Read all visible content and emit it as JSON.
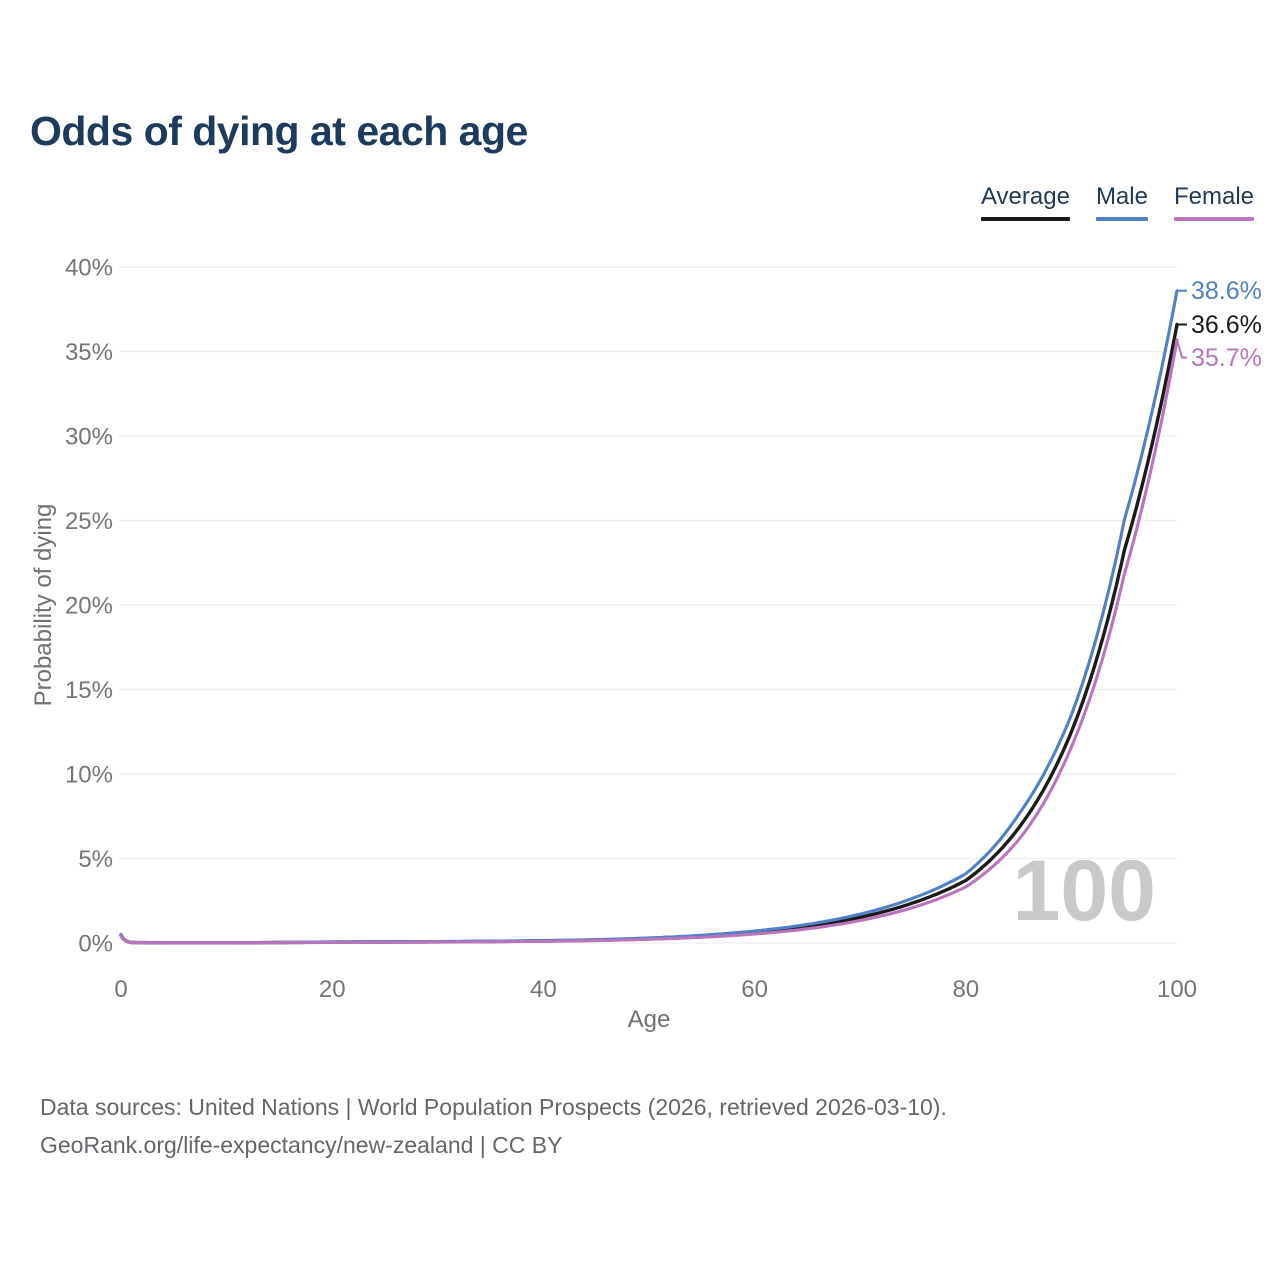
{
  "title": "Odds of dying at each age",
  "legend": [
    {
      "label": "Average",
      "color": "#1b1b1b"
    },
    {
      "label": "Male",
      "color": "#5181c4"
    },
    {
      "label": "Female",
      "color": "#b975bb"
    }
  ],
  "chart_data": {
    "type": "line",
    "title": "Odds of dying at each age",
    "xlabel": "Age",
    "ylabel": "Probability of dying",
    "xlim": [
      0,
      100
    ],
    "ylim": [
      0,
      40
    ],
    "xticks": [
      0,
      20,
      40,
      60,
      80,
      100
    ],
    "yticks": [
      0,
      5,
      10,
      15,
      20,
      25,
      30,
      35,
      40
    ],
    "ytick_suffix": "%",
    "grid": "horizontal",
    "legend_position": "top-right",
    "watermark": "100",
    "ages": [
      0,
      1,
      5,
      10,
      15,
      20,
      25,
      30,
      35,
      40,
      45,
      50,
      55,
      60,
      65,
      70,
      75,
      80,
      85,
      90,
      95,
      100
    ],
    "series": [
      {
        "name": "Average",
        "color": "#1b1b1b",
        "end_label": "36.6%",
        "end_value": 36.6,
        "values": [
          0.45,
          0.03,
          0.01,
          0.01,
          0.03,
          0.05,
          0.06,
          0.07,
          0.09,
          0.12,
          0.17,
          0.26,
          0.4,
          0.62,
          0.97,
          1.52,
          2.37,
          3.7,
          6.8,
          12.5,
          23.2,
          36.6
        ]
      },
      {
        "name": "Male",
        "color": "#5181c4",
        "end_label": "38.6%",
        "end_value": 38.6,
        "values": [
          0.5,
          0.035,
          0.012,
          0.012,
          0.04,
          0.07,
          0.08,
          0.09,
          0.11,
          0.15,
          0.2,
          0.3,
          0.46,
          0.71,
          1.1,
          1.71,
          2.65,
          4.1,
          7.6,
          13.5,
          25.0,
          38.6
        ]
      },
      {
        "name": "Female",
        "color": "#b975bb",
        "end_label": "35.7%",
        "end_value": 35.7,
        "values": [
          0.4,
          0.026,
          0.009,
          0.009,
          0.02,
          0.03,
          0.04,
          0.05,
          0.07,
          0.1,
          0.14,
          0.22,
          0.34,
          0.53,
          0.84,
          1.33,
          2.1,
          3.32,
          6.1,
          11.6,
          21.8,
          35.7
        ]
      }
    ]
  },
  "footer": {
    "line1": "Data sources: United Nations | World Population Prospects (2026, retrieved 2026-03-10).",
    "line2": "GeoRank.org/life-expectancy/new-zealand | CC BY"
  }
}
